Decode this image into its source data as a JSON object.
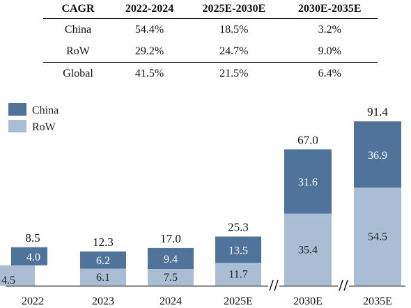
{
  "table": {
    "headers": [
      "CAGR",
      "2022-2024",
      "2025E-2030E",
      "2030E-2035E"
    ],
    "rows": [
      [
        "China",
        "54.4%",
        "18.5%",
        "3.2%"
      ],
      [
        "RoW",
        "29.2%",
        "24.7%",
        "9.0%"
      ],
      [
        "Global",
        "41.5%",
        "21.5%",
        "6.4%"
      ]
    ]
  },
  "chart_data": {
    "type": "bar",
    "stacked": true,
    "categories": [
      "2022",
      "2023",
      "2024",
      "2025E",
      "2030E",
      "2035E"
    ],
    "series": [
      {
        "name": "RoW",
        "color": "#a9bed4",
        "values": [
          4.5,
          6.1,
          7.5,
          11.7,
          35.4,
          54.5
        ]
      },
      {
        "name": "China",
        "color": "#4f739b",
        "values": [
          4.0,
          6.2,
          9.4,
          13.5,
          31.6,
          36.9
        ]
      }
    ],
    "totals": [
      8.5,
      12.3,
      17.0,
      25.3,
      67.0,
      91.4
    ],
    "legend": [
      "China",
      "RoW"
    ],
    "legend_position": "top-left",
    "axis_breaks_before": [
      "2030E",
      "2035E"
    ],
    "y_axis_visible": false,
    "grid": false
  }
}
